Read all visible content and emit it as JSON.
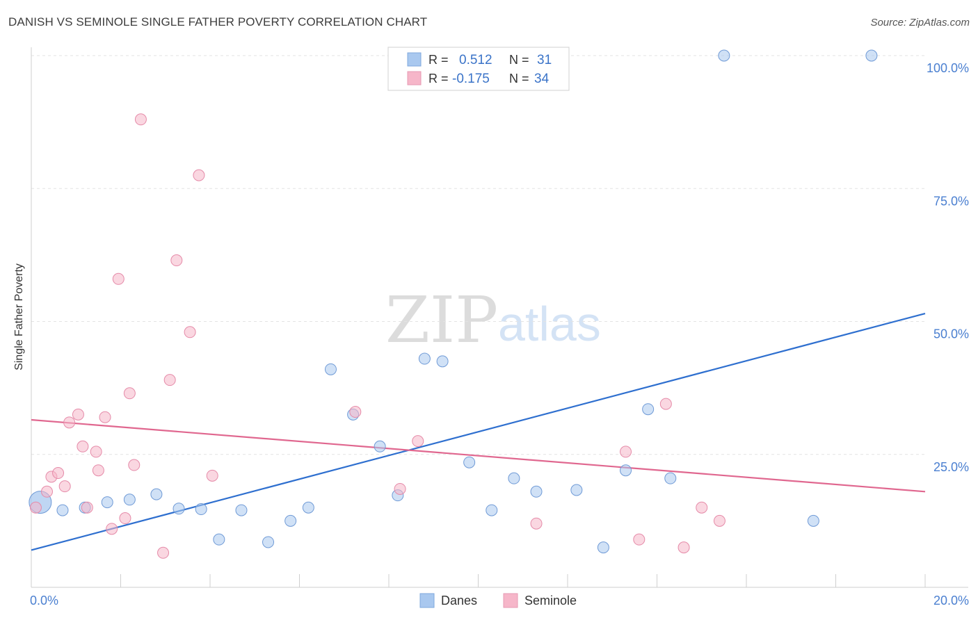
{
  "chart_data": {
    "type": "scatter",
    "title": "DANISH VS SEMINOLE SINGLE FATHER POVERTY CORRELATION CHART",
    "source": "Source: ZipAtlas.com",
    "xlabel": "",
    "ylabel": "Single Father Poverty",
    "xlim": [
      0,
      20
    ],
    "ylim": [
      0,
      100
    ],
    "x_ticks": [
      0,
      2,
      4,
      6,
      8,
      10,
      12,
      14,
      16,
      18,
      20
    ],
    "x_tick_labels": [
      {
        "value": 0,
        "label": "0.0%"
      },
      {
        "value": 20,
        "label": "20.0%"
      }
    ],
    "y_tick_labels": [
      {
        "value": 25,
        "label": "25.0%"
      },
      {
        "value": 50,
        "label": "50.0%"
      },
      {
        "value": 75,
        "label": "75.0%"
      },
      {
        "value": 100,
        "label": "100.0%"
      }
    ],
    "grid": true,
    "legend_position": "bottom-center",
    "watermark": "ZIPatlas",
    "series": [
      {
        "name": "Danes",
        "color": "#a9c8ef",
        "line_color": "#2e6fcf",
        "R": "0.512",
        "N": "31",
        "trend": {
          "x0": 0,
          "y0": 7.0,
          "x1": 20,
          "y1": 51.5
        },
        "points": [
          [
            0.2,
            16.0
          ],
          [
            0.7,
            14.5
          ],
          [
            1.2,
            15.0
          ],
          [
            1.7,
            16.0
          ],
          [
            2.2,
            16.5
          ],
          [
            2.8,
            17.5
          ],
          [
            3.3,
            14.8
          ],
          [
            3.8,
            14.7
          ],
          [
            4.2,
            9.0
          ],
          [
            4.7,
            14.5
          ],
          [
            5.3,
            8.5
          ],
          [
            5.8,
            12.5
          ],
          [
            6.2,
            15.0
          ],
          [
            6.7,
            41.0
          ],
          [
            7.2,
            32.5
          ],
          [
            7.8,
            26.5
          ],
          [
            8.2,
            17.3
          ],
          [
            8.8,
            43.0
          ],
          [
            9.2,
            42.5
          ],
          [
            9.8,
            23.5
          ],
          [
            10.3,
            14.5
          ],
          [
            10.8,
            20.5
          ],
          [
            11.3,
            18.0
          ],
          [
            12.2,
            18.3
          ],
          [
            12.8,
            7.5
          ],
          [
            13.3,
            22.0
          ],
          [
            13.8,
            33.5
          ],
          [
            14.3,
            20.5
          ],
          [
            15.5,
            100.0
          ],
          [
            17.5,
            12.5
          ],
          [
            18.8,
            100.0
          ]
        ]
      },
      {
        "name": "Seminole",
        "color": "#f6b6c9",
        "line_color": "#e0678f",
        "R": "-0.175",
        "N": "34",
        "trend": {
          "x0": 0,
          "y0": 31.5,
          "x1": 20,
          "y1": 18.0
        },
        "points": [
          [
            0.1,
            15.0
          ],
          [
            0.35,
            18.0
          ],
          [
            0.45,
            20.8
          ],
          [
            0.6,
            21.5
          ],
          [
            0.75,
            19.0
          ],
          [
            0.85,
            31.0
          ],
          [
            1.05,
            32.5
          ],
          [
            1.15,
            26.5
          ],
          [
            1.25,
            15.0
          ],
          [
            1.45,
            25.5
          ],
          [
            1.5,
            22.0
          ],
          [
            1.65,
            32.0
          ],
          [
            1.8,
            11.0
          ],
          [
            1.95,
            58.0
          ],
          [
            2.1,
            13.0
          ],
          [
            2.2,
            36.5
          ],
          [
            2.3,
            23.0
          ],
          [
            2.45,
            88.0
          ],
          [
            2.95,
            6.5
          ],
          [
            3.1,
            39.0
          ],
          [
            3.25,
            61.5
          ],
          [
            3.55,
            48.0
          ],
          [
            3.75,
            77.5
          ],
          [
            4.05,
            21.0
          ],
          [
            7.25,
            33.0
          ],
          [
            8.25,
            18.5
          ],
          [
            8.65,
            27.5
          ],
          [
            11.3,
            12.0
          ],
          [
            13.3,
            25.5
          ],
          [
            13.6,
            9.0
          ],
          [
            14.2,
            34.5
          ],
          [
            14.6,
            7.5
          ],
          [
            15.0,
            15.0
          ],
          [
            15.4,
            12.5
          ]
        ]
      }
    ]
  }
}
